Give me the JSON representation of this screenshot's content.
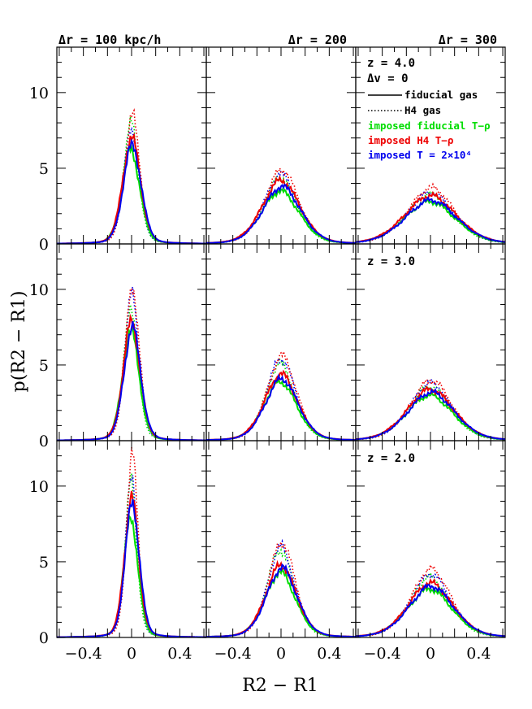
{
  "chart_data": {
    "type": "line",
    "xlabel": "R2 − R1",
    "ylabel": "p(R2 − R1)",
    "xlim": [
      -0.62,
      0.62
    ],
    "ylim": [
      0,
      13
    ],
    "x_ticks": [
      {
        "value": -0.4,
        "label": "−0.4"
      },
      {
        "value": 0,
        "label": "0"
      },
      {
        "value": 0.4,
        "label": "0.4"
      }
    ],
    "y_ticks": [
      {
        "value": 0,
        "label": "0"
      },
      {
        "value": 5,
        "label": "5"
      },
      {
        "value": 10,
        "label": "10"
      }
    ],
    "grid": false,
    "columns": [
      "Δr = 100 kpc/h",
      "Δr = 200",
      "Δr = 300"
    ],
    "row_labels": [
      "z = 4.0",
      "z = 3.0",
      "z = 2.0"
    ],
    "delta_v_label": "Δv = 0",
    "legend": {
      "placement": "top-right panel",
      "entries": [
        {
          "label": "fiducial gas",
          "style": "solid",
          "color": "#000000"
        },
        {
          "label": "H4 gas",
          "style": "dotted",
          "color": "#000000"
        },
        {
          "label": "imposed fiducial T−ρ",
          "color": "#00dd00"
        },
        {
          "label": "imposed H4 T−ρ",
          "color": "#ee0000"
        },
        {
          "label": "imposed T = 2×10⁴",
          "color": "#0000ee"
        }
      ]
    },
    "series_styles": [
      {
        "key": "fid_green",
        "color": "#00dd00",
        "dash": "solid"
      },
      {
        "key": "fid_red",
        "color": "#ee0000",
        "dash": "solid"
      },
      {
        "key": "fid_blue",
        "color": "#0000ee",
        "dash": "solid"
      },
      {
        "key": "h4_green",
        "color": "#00dd00",
        "dash": "dotted"
      },
      {
        "key": "h4_red",
        "color": "#ee0000",
        "dash": "dotted"
      },
      {
        "key": "h4_blue",
        "color": "#0000ee",
        "dash": "dotted"
      }
    ],
    "panels": [
      {
        "row": 0,
        "col": 0,
        "peaks": {
          "fid_green": 6.3,
          "fid_red": 7.1,
          "fid_blue": 6.6,
          "h4_green": 8.0,
          "h4_red": 8.5,
          "h4_blue": 7.7
        },
        "widths": {
          "fid": 0.075,
          "h4": 0.065
        }
      },
      {
        "row": 0,
        "col": 1,
        "peaks": {
          "fid_green": 3.5,
          "fid_red": 4.2,
          "fid_blue": 3.8,
          "h4_green": 4.4,
          "h4_red": 4.9,
          "h4_blue": 4.6
        },
        "widths": {
          "fid": 0.16,
          "h4": 0.145
        }
      },
      {
        "row": 0,
        "col": 2,
        "peaks": {
          "fid_green": 2.8,
          "fid_red": 3.2,
          "fid_blue": 2.9,
          "h4_green": 3.3,
          "h4_red": 3.7,
          "h4_blue": 3.4
        },
        "widths": {
          "fid": 0.22,
          "h4": 0.2
        }
      },
      {
        "row": 1,
        "col": 0,
        "peaks": {
          "fid_green": 7.3,
          "fid_red": 8.0,
          "fid_blue": 7.6,
          "h4_green": 9.0,
          "h4_red": 10.3,
          "h4_blue": 9.7
        },
        "widths": {
          "fid": 0.07,
          "h4": 0.06
        }
      },
      {
        "row": 1,
        "col": 1,
        "peaks": {
          "fid_green": 3.9,
          "fid_red": 4.4,
          "fid_blue": 4.1,
          "h4_green": 5.1,
          "h4_red": 5.6,
          "h4_blue": 5.4
        },
        "widths": {
          "fid": 0.14,
          "h4": 0.125
        }
      },
      {
        "row": 1,
        "col": 2,
        "peaks": {
          "fid_green": 3.0,
          "fid_red": 3.4,
          "fid_blue": 3.2,
          "h4_green": 3.6,
          "h4_red": 4.0,
          "h4_blue": 3.8
        },
        "widths": {
          "fid": 0.2,
          "h4": 0.18
        }
      },
      {
        "row": 2,
        "col": 0,
        "peaks": {
          "fid_green": 8.0,
          "fid_red": 9.3,
          "fid_blue": 9.0,
          "h4_green": 10.3,
          "h4_red": 12.0,
          "h4_blue": 11.0
        },
        "widths": {
          "fid": 0.06,
          "h4": 0.05
        }
      },
      {
        "row": 2,
        "col": 1,
        "peaks": {
          "fid_green": 4.3,
          "fid_red": 4.8,
          "fid_blue": 4.6,
          "h4_green": 5.8,
          "h4_red": 6.3,
          "h4_blue": 6.0
        },
        "widths": {
          "fid": 0.13,
          "h4": 0.115
        }
      },
      {
        "row": 2,
        "col": 2,
        "peaks": {
          "fid_green": 3.2,
          "fid_red": 3.6,
          "fid_blue": 3.4,
          "h4_green": 4.0,
          "h4_red": 4.5,
          "h4_blue": 4.2
        },
        "widths": {
          "fid": 0.19,
          "h4": 0.17
        }
      }
    ]
  }
}
